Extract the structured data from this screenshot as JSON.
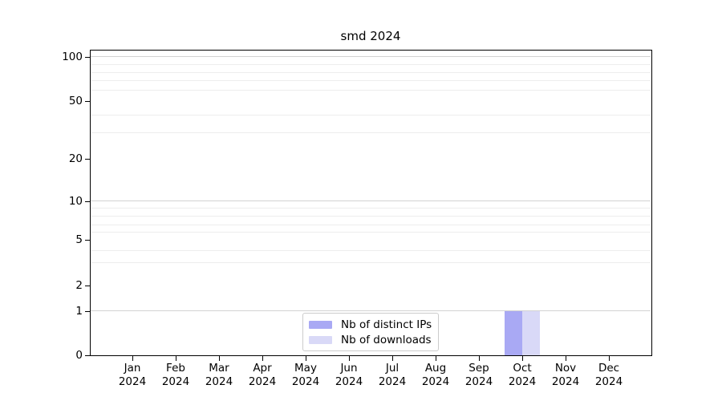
{
  "title": "smd 2024",
  "chart_data": {
    "type": "bar",
    "title": "smd 2024",
    "categories": [
      "Jan",
      "Feb",
      "Mar",
      "Apr",
      "May",
      "Jun",
      "Jul",
      "Aug",
      "Sep",
      "Oct",
      "Nov",
      "Dec"
    ],
    "year_label": "2024",
    "series": [
      {
        "name": "Nb of distinct IPs",
        "color": "#a9a9f4",
        "values": [
          0,
          0,
          0,
          0,
          0,
          0,
          0,
          0,
          0,
          1,
          0,
          0
        ]
      },
      {
        "name": "Nb of downloads",
        "color": "#d9d9f7",
        "values": [
          0,
          0,
          0,
          0,
          0,
          0,
          0,
          0,
          0,
          1,
          0,
          0
        ]
      }
    ],
    "xlabel": "",
    "ylabel": "",
    "y_axis": {
      "scale": "log-like with zero baseline",
      "tick_labels": [
        "100",
        "50",
        "20",
        "10",
        "5",
        "2",
        "1",
        "0"
      ],
      "tick_values": [
        100,
        50,
        20,
        10,
        5,
        2,
        1,
        0
      ],
      "decade_gridline_values": [
        100,
        10,
        1
      ],
      "minor_gridline_values": [
        90,
        80,
        70,
        60,
        40,
        30,
        9,
        8,
        7,
        6,
        4,
        3
      ],
      "ylim": [
        0,
        120
      ],
      "grid": "on"
    },
    "legend": {
      "position": "lower center",
      "entries": [
        "Nb of distinct IPs",
        "Nb of downloads"
      ]
    },
    "colors": {
      "bar_distinct_ips": "#a9a9f4",
      "bar_downloads": "#d9d9f7",
      "gridline_major": "#d2d2d2",
      "gridline_minor": "#ededed",
      "axis": "#000000",
      "legend_border": "#cccccc"
    }
  }
}
